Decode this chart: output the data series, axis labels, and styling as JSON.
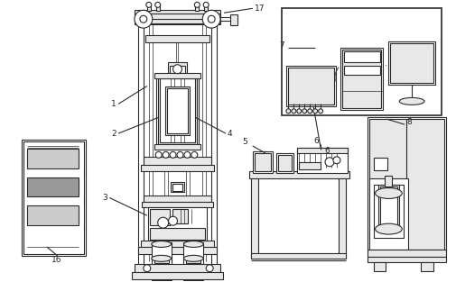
{
  "bg_color": "#ffffff",
  "line_color": "#2a2a2a",
  "light_fill": "#e8e8e8",
  "mid_fill": "#cccccc",
  "dark_fill": "#999999",
  "white": "#ffffff",
  "figsize": [
    5.06,
    3.13
  ],
  "dpi": 100
}
